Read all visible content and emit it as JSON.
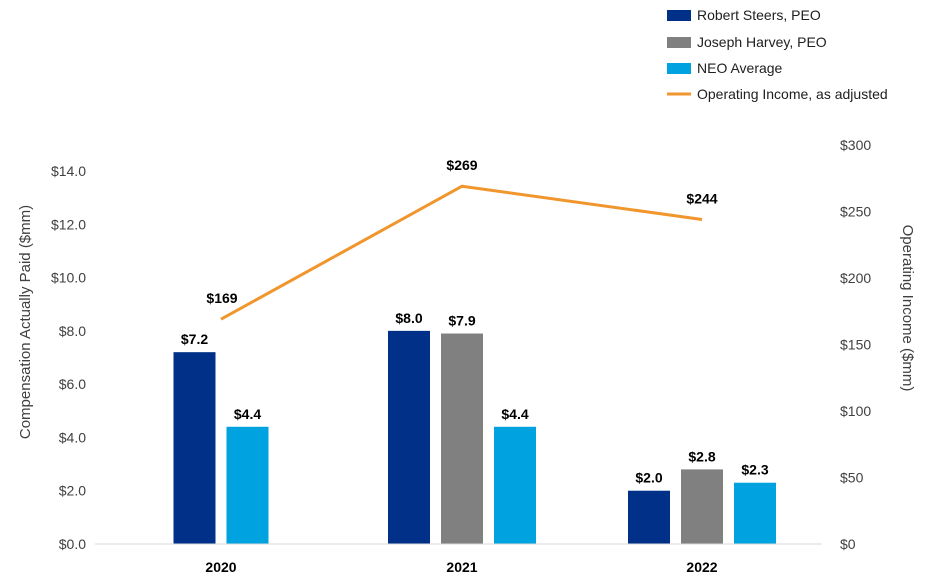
{
  "chart_data": {
    "type": "bar",
    "categories": [
      "2020",
      "2021",
      "2022"
    ],
    "series": [
      {
        "name": "Robert Steers, PEO",
        "color": "#003087",
        "values": [
          7.2,
          8.0,
          2.0
        ],
        "labels": [
          "$7.2",
          "$8.0",
          "$2.0"
        ]
      },
      {
        "name": "Joseph Harvey, PEO",
        "color": "#808080",
        "values": [
          null,
          7.9,
          2.8
        ],
        "labels": [
          null,
          "$7.9",
          "$2.8"
        ]
      },
      {
        "name": "NEO Average",
        "color": "#00A3E0",
        "values": [
          4.4,
          4.4,
          2.3
        ],
        "labels": [
          "$4.4",
          "$4.4",
          "$2.3"
        ]
      }
    ],
    "line_series": {
      "name": "Operating Income, as adjusted",
      "color": "#F0962D",
      "axis": "right",
      "values": [
        169,
        269,
        244
      ],
      "labels": [
        "$169",
        "$269",
        "$244"
      ]
    },
    "ylabel": "Compensation Actually Paid ($mm)",
    "ylabel_right": "Operating Income ($mm)",
    "ylim": [
      0,
      14
    ],
    "ylim_right": [
      0,
      300
    ],
    "yticks": [
      0,
      2,
      4,
      6,
      8,
      10,
      12,
      14
    ],
    "ytick_labels": [
      "$0.0",
      "$2.0",
      "$4.0",
      "$6.0",
      "$8.0",
      "$10.0",
      "$12.0",
      "$14.0"
    ],
    "yticks_right": [
      0,
      50,
      100,
      150,
      200,
      250,
      300
    ],
    "ytick_labels_right": [
      "$0",
      "$50",
      "$100",
      "$150",
      "$200",
      "$250",
      "$300"
    ],
    "grid": false,
    "legend_position": "top-right"
  }
}
